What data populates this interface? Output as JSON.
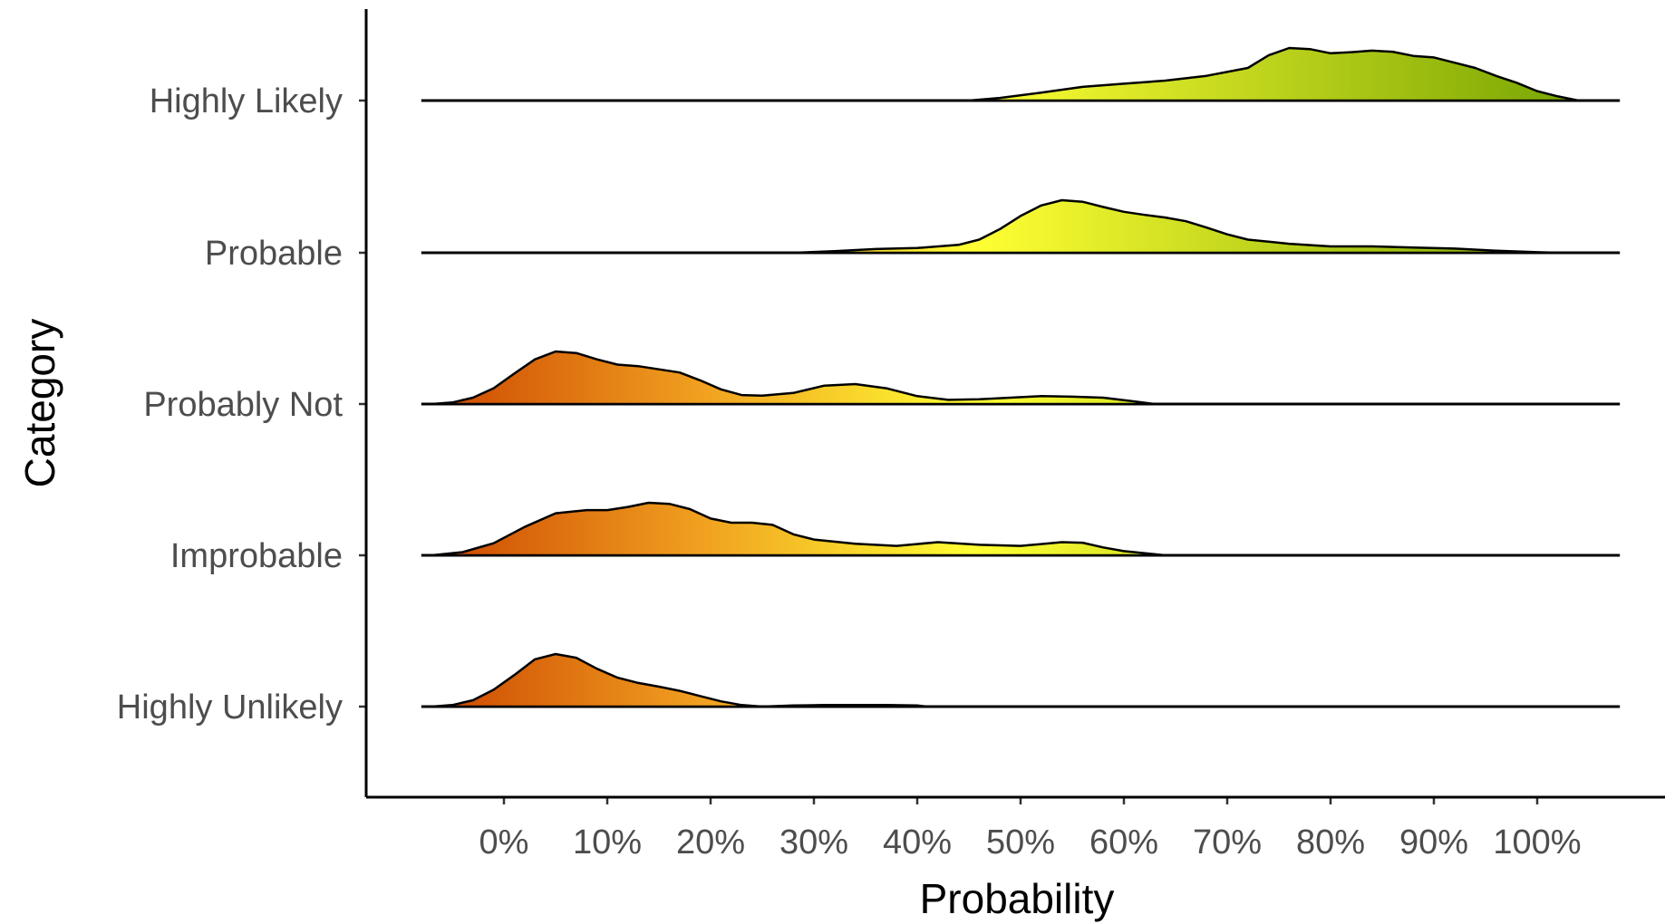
{
  "chart_data": {
    "type": "ridgeline",
    "xlabel": "Probability",
    "ylabel": "Category",
    "x_ticks": [
      0,
      10,
      20,
      30,
      40,
      50,
      60,
      70,
      80,
      90,
      100
    ],
    "x_tick_labels": [
      "0%",
      "10%",
      "20%",
      "30%",
      "40%",
      "50%",
      "60%",
      "70%",
      "80%",
      "90%",
      "100%"
    ],
    "xlim": [
      -8,
      108
    ],
    "grid": false,
    "legend": "none",
    "fill_gradient": [
      "#cc4400",
      "#f0a020",
      "#ffff33",
      "#6e9e00"
    ],
    "categories": [
      "Highly Likely",
      "Probable",
      "Probably Not",
      "Improbable",
      "Highly Unlikely"
    ],
    "series": [
      {
        "name": "Highly Likely",
        "x": [
          45,
          48,
          52,
          56,
          60,
          64,
          68,
          72,
          74,
          76,
          78,
          80,
          82,
          84,
          86,
          88,
          90,
          92,
          94,
          96,
          98,
          100,
          102,
          104
        ],
        "density": [
          0.0,
          0.05,
          0.15,
          0.26,
          0.32,
          0.38,
          0.47,
          0.62,
          0.86,
          1.0,
          0.98,
          0.9,
          0.92,
          0.95,
          0.93,
          0.85,
          0.82,
          0.72,
          0.62,
          0.47,
          0.34,
          0.18,
          0.08,
          0.0
        ]
      },
      {
        "name": "Probable",
        "x": [
          28,
          32,
          36,
          40,
          44,
          46,
          48,
          50,
          52,
          54,
          56,
          58,
          60,
          62,
          64,
          66,
          68,
          70,
          72,
          76,
          80,
          84,
          88,
          92,
          96,
          100,
          102
        ],
        "density": [
          0.0,
          0.03,
          0.07,
          0.09,
          0.15,
          0.25,
          0.45,
          0.7,
          0.9,
          1.0,
          0.97,
          0.87,
          0.78,
          0.72,
          0.67,
          0.6,
          0.48,
          0.35,
          0.25,
          0.17,
          0.12,
          0.12,
          0.1,
          0.08,
          0.04,
          0.01,
          0.0
        ]
      },
      {
        "name": "Probably Not",
        "x": [
          -7,
          -5,
          -3,
          -1,
          1,
          3,
          5,
          7,
          9,
          11,
          13,
          15,
          17,
          19,
          21,
          23,
          25,
          28,
          31,
          34,
          37,
          40,
          43,
          46,
          49,
          52,
          55,
          58,
          61,
          63
        ],
        "density": [
          0.0,
          0.03,
          0.12,
          0.3,
          0.58,
          0.85,
          1.0,
          0.97,
          0.85,
          0.75,
          0.72,
          0.66,
          0.6,
          0.45,
          0.28,
          0.17,
          0.16,
          0.21,
          0.35,
          0.38,
          0.3,
          0.15,
          0.08,
          0.09,
          0.12,
          0.15,
          0.14,
          0.12,
          0.05,
          0.0
        ]
      },
      {
        "name": "Improbable",
        "x": [
          -7,
          -4,
          -1,
          2,
          5,
          8,
          10,
          12,
          14,
          16,
          18,
          20,
          22,
          24,
          26,
          28,
          30,
          34,
          38,
          42,
          46,
          50,
          54,
          56,
          58,
          60,
          64
        ],
        "density": [
          0.0,
          0.06,
          0.23,
          0.54,
          0.8,
          0.86,
          0.86,
          0.92,
          1.0,
          0.98,
          0.88,
          0.7,
          0.62,
          0.62,
          0.58,
          0.4,
          0.3,
          0.22,
          0.18,
          0.25,
          0.2,
          0.18,
          0.25,
          0.24,
          0.15,
          0.08,
          0.0
        ]
      },
      {
        "name": "Highly Unlikely",
        "x": [
          -7,
          -5,
          -3,
          -1,
          1,
          3,
          5,
          7,
          9,
          11,
          13,
          15,
          17,
          19,
          21,
          23,
          25,
          28,
          31,
          34,
          37,
          40,
          41
        ],
        "density": [
          0.0,
          0.03,
          0.12,
          0.32,
          0.6,
          0.9,
          1.0,
          0.93,
          0.72,
          0.55,
          0.45,
          0.38,
          0.3,
          0.2,
          0.1,
          0.03,
          0.0,
          0.02,
          0.03,
          0.03,
          0.03,
          0.02,
          0.0
        ]
      }
    ]
  }
}
